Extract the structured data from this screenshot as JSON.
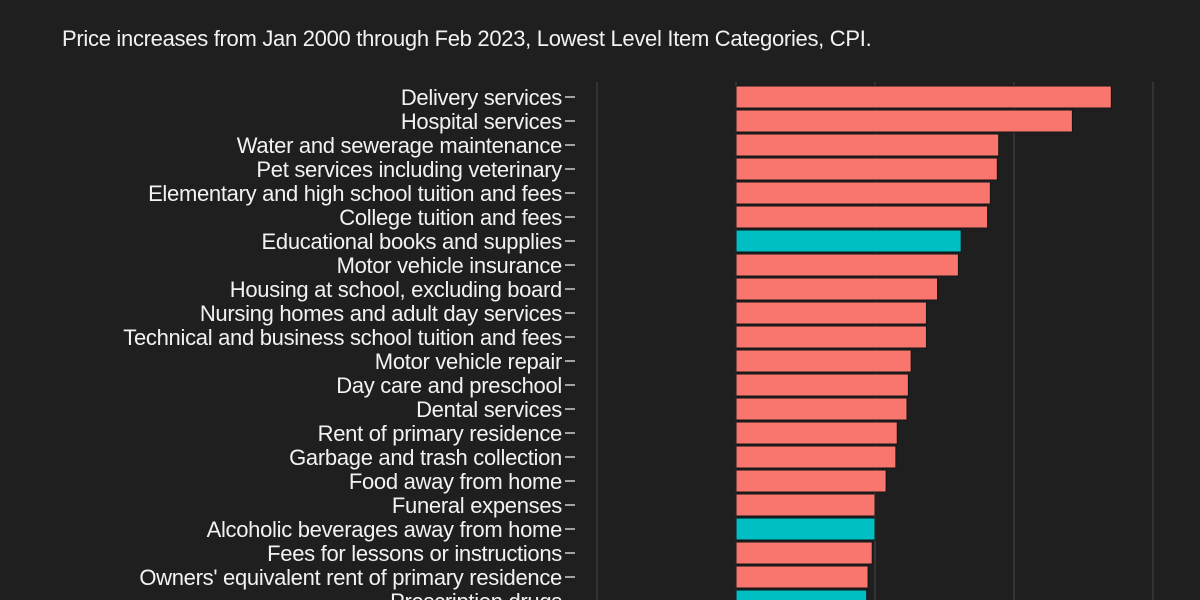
{
  "chart_data": {
    "type": "bar",
    "orientation": "horizontal",
    "title": "",
    "subtitle": "Price increases from Jan 2000 through Feb 2023, Lowest Level Item Categories, CPI.",
    "xlabel": "",
    "ylabel": "",
    "unit": "percent change",
    "xlim": [
      -100,
      300
    ],
    "gridlines": [
      -100,
      0,
      100,
      200,
      300
    ],
    "grid": true,
    "colors": {
      "default": "#F8766D",
      "highlight": "#00BFC4",
      "background": "#1f1f1f"
    },
    "categories": [
      "Delivery services",
      "Hospital services",
      "Water and sewerage maintenance",
      "Pet services including veterinary",
      "Elementary and high school tuition and fees",
      "College tuition and fees",
      "Educational books and supplies",
      "Motor vehicle insurance",
      "Housing at school, excluding board",
      "Nursing homes and adult day services",
      "Technical and business school tuition and fees",
      "Motor vehicle repair",
      "Day care and preschool",
      "Dental services",
      "Rent of primary residence",
      "Garbage and trash collection",
      "Food away from home",
      "Funeral expenses",
      "Alcoholic beverages away from home",
      "Fees for lessons or instructions",
      "Owners' equivalent rent of primary residence",
      "Prescription drugs"
    ],
    "values": [
      270,
      242,
      189,
      188,
      183,
      181,
      162,
      160,
      145,
      137,
      137,
      126,
      124,
      123,
      116,
      115,
      108,
      100,
      100,
      98,
      95,
      94
    ],
    "highlighted": [
      false,
      false,
      false,
      false,
      false,
      false,
      true,
      false,
      false,
      false,
      false,
      false,
      false,
      false,
      false,
      false,
      false,
      false,
      true,
      false,
      false,
      true
    ]
  }
}
